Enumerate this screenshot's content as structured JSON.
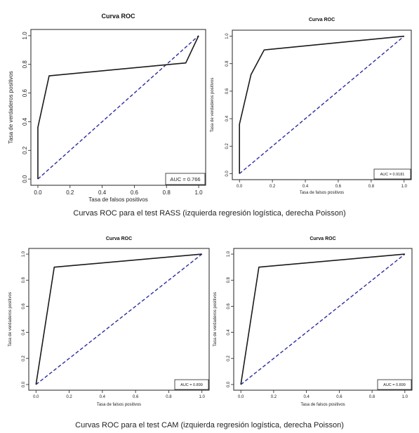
{
  "captions": {
    "rass": "Curvas ROC para el test RASS (izquierda regresión logística, derecha Poisson)",
    "cam": "Curvas ROC para el test CAM (izquierda regresión logística, derecha Poisson)"
  },
  "chart_data": [
    {
      "type": "line",
      "title": "Curva ROC",
      "xlabel": "Tasa de falsos positivos",
      "ylabel": "Tasa de verdaderos positivos",
      "xlim": [
        0,
        1
      ],
      "ylim": [
        0,
        1
      ],
      "x_ticks": [
        "0.0",
        "0.2",
        "0.4",
        "0.6",
        "0.8",
        "1.0"
      ],
      "y_ticks": [
        "0.0",
        "0.2",
        "0.4",
        "0.6",
        "0.8",
        "1.0"
      ],
      "legend": "AUC = 0.766",
      "grid": false,
      "series": [
        {
          "x": [
            0,
            0,
            0.07,
            0.92,
            1.0
          ],
          "y": [
            0,
            0.36,
            0.72,
            0.81,
            1.0
          ],
          "color": "#1a1a1a",
          "style": "solid"
        },
        {
          "x": [
            0,
            1
          ],
          "y": [
            0,
            1
          ],
          "color": "#2c2ca0",
          "style": "dashed"
        }
      ]
    },
    {
      "type": "line",
      "title": "Curva ROC",
      "xlabel": "Tasa de falsos positivos",
      "ylabel": "Tasa de verdaderos positivos",
      "xlim": [
        0,
        1
      ],
      "ylim": [
        0,
        1
      ],
      "x_ticks": [
        "0.0",
        "0.2",
        "0.4",
        "0.6",
        "0.8",
        "1.0"
      ],
      "y_ticks": [
        "0.0",
        "0.2",
        "0.4",
        "0.6",
        "0.8",
        "1.0"
      ],
      "legend": "AUC = 0.9181",
      "grid": false,
      "series": [
        {
          "x": [
            0,
            0,
            0.07,
            0.15,
            1.0
          ],
          "y": [
            0,
            0.36,
            0.72,
            0.9,
            1.0
          ],
          "color": "#1a1a1a",
          "style": "solid"
        },
        {
          "x": [
            0,
            1
          ],
          "y": [
            0,
            1
          ],
          "color": "#2c2ca0",
          "style": "dashed"
        }
      ]
    },
    {
      "type": "line",
      "title": "Curva ROC",
      "xlabel": "Tasa de falsos positivos",
      "ylabel": "Tasa de verdaderos positivos",
      "xlim": [
        0,
        1
      ],
      "ylim": [
        0,
        1
      ],
      "x_ticks": [
        "0.0",
        "0.2",
        "0.4",
        "0.6",
        "0.8",
        "1.0"
      ],
      "y_ticks": [
        "0.0",
        "0.2",
        "0.4",
        "0.6",
        "0.8",
        "1.0"
      ],
      "legend": "AUC = 0.899",
      "grid": false,
      "series": [
        {
          "x": [
            0,
            0.11,
            1.0
          ],
          "y": [
            0,
            0.9,
            1.0
          ],
          "color": "#1a1a1a",
          "style": "solid"
        },
        {
          "x": [
            0,
            1
          ],
          "y": [
            0,
            1
          ],
          "color": "#2c2ca0",
          "style": "dashed"
        }
      ]
    },
    {
      "type": "line",
      "title": "Curva ROC",
      "xlabel": "Tasa de falsos positivos",
      "ylabel": "Tasa de verdaderos positivos",
      "xlim": [
        0,
        1
      ],
      "ylim": [
        0,
        1
      ],
      "x_ticks": [
        "0.0",
        "0.2",
        "0.4",
        "0.6",
        "0.8",
        "1.0"
      ],
      "y_ticks": [
        "0.0",
        "0.2",
        "0.4",
        "0.6",
        "0.8",
        "1.0"
      ],
      "legend": "AUC = 0.899",
      "grid": false,
      "series": [
        {
          "x": [
            0,
            0.11,
            1.0
          ],
          "y": [
            0,
            0.9,
            1.0
          ],
          "color": "#1a1a1a",
          "style": "solid"
        },
        {
          "x": [
            0,
            1
          ],
          "y": [
            0,
            1
          ],
          "color": "#2c2ca0",
          "style": "dashed"
        }
      ]
    }
  ]
}
